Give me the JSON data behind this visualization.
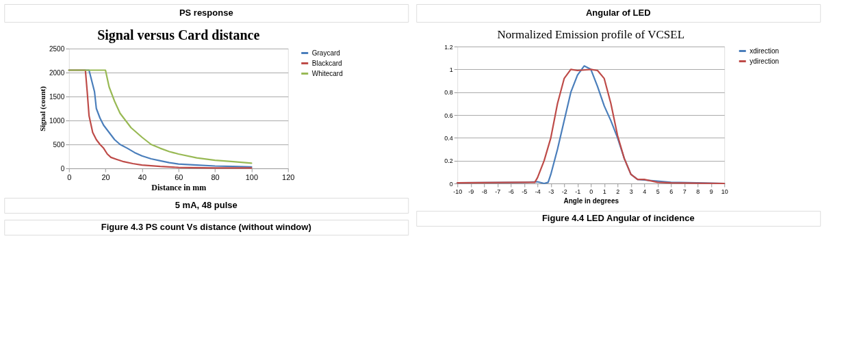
{
  "chart_data": [
    {
      "type": "line",
      "title": "Signal versus Card distance",
      "xlabel": "Distance in mm",
      "ylabel": "Signal (count)",
      "annotations": [
        "PS response",
        "5 mA, 48 pulse",
        "Figure 4.3 PS count Vs distance (without window)"
      ],
      "xlim": [
        0,
        120
      ],
      "xticks": [
        0,
        20,
        40,
        60,
        80,
        100,
        120
      ],
      "ylim": [
        0,
        2500
      ],
      "yticks": [
        0,
        500,
        1000,
        1500,
        2000,
        2500
      ],
      "grid": "y",
      "legend": "right",
      "series": [
        {
          "name": "Graycard",
          "color": "#4a7ebb",
          "x": [
            0,
            11,
            12,
            14,
            15,
            17,
            19,
            22,
            25,
            28,
            32,
            36,
            40,
            45,
            50,
            55,
            60,
            70,
            80,
            90,
            100
          ],
          "values": [
            2050,
            2050,
            1900,
            1600,
            1250,
            1050,
            900,
            750,
            600,
            500,
            420,
            330,
            260,
            200,
            160,
            120,
            90,
            70,
            50,
            40,
            30
          ]
        },
        {
          "name": "Blackcard",
          "color": "#be4b48",
          "x": [
            0,
            9,
            10,
            11,
            13,
            15,
            17,
            19,
            21,
            23,
            26,
            30,
            35,
            40,
            50,
            60,
            80,
            100
          ],
          "values": [
            2050,
            2050,
            1600,
            1100,
            750,
            600,
            500,
            420,
            300,
            230,
            190,
            140,
            100,
            70,
            40,
            20,
            10,
            10
          ]
        },
        {
          "name": "Whitecard",
          "color": "#98b954",
          "x": [
            0,
            20,
            22,
            25,
            28,
            31,
            34,
            37,
            40,
            45,
            50,
            55,
            60,
            70,
            80,
            90,
            100
          ],
          "values": [
            2050,
            2050,
            1700,
            1400,
            1150,
            1000,
            850,
            750,
            650,
            500,
            420,
            350,
            300,
            220,
            170,
            140,
            110
          ]
        }
      ]
    },
    {
      "type": "line",
      "title": "Normalized Emission profile of VCSEL",
      "xlabel": "Angle in degrees",
      "annotations": [
        "Angular of LED",
        "Figure 4.4  LED  Angular of incidence"
      ],
      "xlim": [
        -10,
        10
      ],
      "xticks": [
        -10,
        -9,
        -8,
        -7,
        -6,
        -5,
        -4,
        -3,
        -2,
        -1,
        0,
        1,
        2,
        3,
        4,
        5,
        6,
        7,
        8,
        9,
        10
      ],
      "ylim": [
        0,
        1.2
      ],
      "yticks": [
        0,
        0.2,
        0.4,
        0.6,
        0.8,
        1,
        1.2
      ],
      "grid": "y",
      "legend": "right",
      "series": [
        {
          "name": "xdirection",
          "color": "#4a7ebb",
          "x": [
            -10,
            -5,
            -4,
            -3.5,
            -3.2,
            -3,
            -2.5,
            -2,
            -1.5,
            -1,
            -0.5,
            0,
            0.5,
            1,
            1.5,
            2,
            2.5,
            3,
            3.5,
            4,
            5,
            6,
            8,
            10
          ],
          "values": [
            0.005,
            0.01,
            0.015,
            0,
            0.01,
            0.08,
            0.3,
            0.55,
            0.8,
            0.95,
            1.03,
            1.0,
            0.85,
            0.68,
            0.55,
            0.4,
            0.22,
            0.08,
            0.035,
            0.03,
            0.02,
            0.01,
            0.005,
            0
          ]
        },
        {
          "name": "ydirection",
          "color": "#be4b48",
          "x": [
            -10,
            -5,
            -4.2,
            -4,
            -3.5,
            -3,
            -2.5,
            -2,
            -1.5,
            -1,
            0,
            0.5,
            1,
            1.5,
            2,
            2.5,
            3,
            3.5,
            4,
            5,
            6,
            10
          ],
          "values": [
            0.005,
            0.01,
            0.01,
            0.05,
            0.2,
            0.4,
            0.7,
            0.92,
            1.0,
            0.99,
            1.0,
            0.99,
            0.92,
            0.7,
            0.42,
            0.22,
            0.08,
            0.035,
            0.035,
            0.01,
            0.005,
            0
          ]
        }
      ]
    }
  ]
}
